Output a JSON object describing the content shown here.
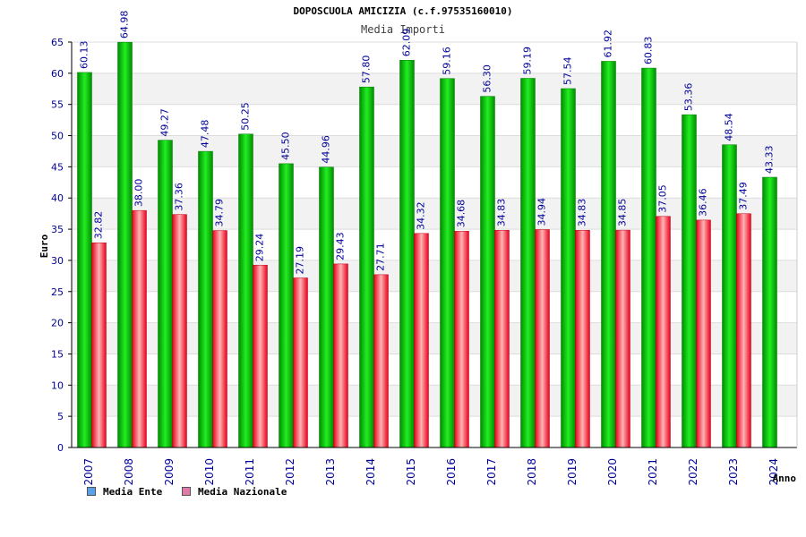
{
  "chart_data": {
    "type": "bar",
    "title": "DOPOSCUOLA AMICIZIA (c.f.97535160010)",
    "subtitle": "Media Importi",
    "xlabel": "Anno",
    "ylabel": "Euro",
    "ylim": [
      0,
      65
    ],
    "yticks": [
      0,
      5,
      10,
      15,
      20,
      25,
      30,
      35,
      40,
      45,
      50,
      55,
      60,
      65
    ],
    "categories": [
      "2007",
      "2008",
      "2009",
      "2010",
      "2011",
      "2012",
      "2013",
      "2014",
      "2015",
      "2016",
      "2017",
      "2018",
      "2019",
      "2020",
      "2021",
      "2022",
      "2023",
      "2024"
    ],
    "series": [
      {
        "name": "Media Ente",
        "values": [
          60.13,
          64.98,
          49.27,
          47.48,
          50.25,
          45.5,
          44.96,
          57.8,
          62.09,
          59.16,
          56.3,
          59.19,
          57.54,
          61.92,
          60.83,
          53.36,
          48.54,
          43.33
        ],
        "labels": [
          "60.13",
          "64.98",
          "49.27",
          "47.48",
          "50.25",
          "45.50",
          "44.96",
          "57.80",
          "62.09",
          "59.16",
          "56.30",
          "59.19",
          "57.54",
          "61.92",
          "60.83",
          "53.36",
          "48.54",
          "43.33"
        ]
      },
      {
        "name": "Media Nazionale",
        "values": [
          32.82,
          38.0,
          37.36,
          34.79,
          29.24,
          27.19,
          29.43,
          27.71,
          34.32,
          34.68,
          34.83,
          34.94,
          34.83,
          34.85,
          37.05,
          36.46,
          37.49,
          null
        ],
        "labels": [
          "32.82",
          "38.00",
          "37.36",
          "34.79",
          "29.24",
          "27.19",
          "29.43",
          "27.71",
          "34.32",
          "34.68",
          "34.83",
          "34.94",
          "34.83",
          "34.85",
          "37.05",
          "36.46",
          "37.49",
          null
        ]
      }
    ],
    "legend": {
      "position": "bottom-left",
      "items": [
        {
          "label": "Media Ente",
          "color": "#5aa0e8"
        },
        {
          "label": "Media Nazionale",
          "color": "#e07aa8"
        }
      ]
    },
    "colors": {
      "ente_dark": "#009a00",
      "ente_light": "#22ee22",
      "naz_dark": "#e8001c",
      "naz_light": "#ffb4b4",
      "axis_text": "#000099",
      "grid_band": "#f2f2f2",
      "grid_line": "#dddddd"
    }
  }
}
